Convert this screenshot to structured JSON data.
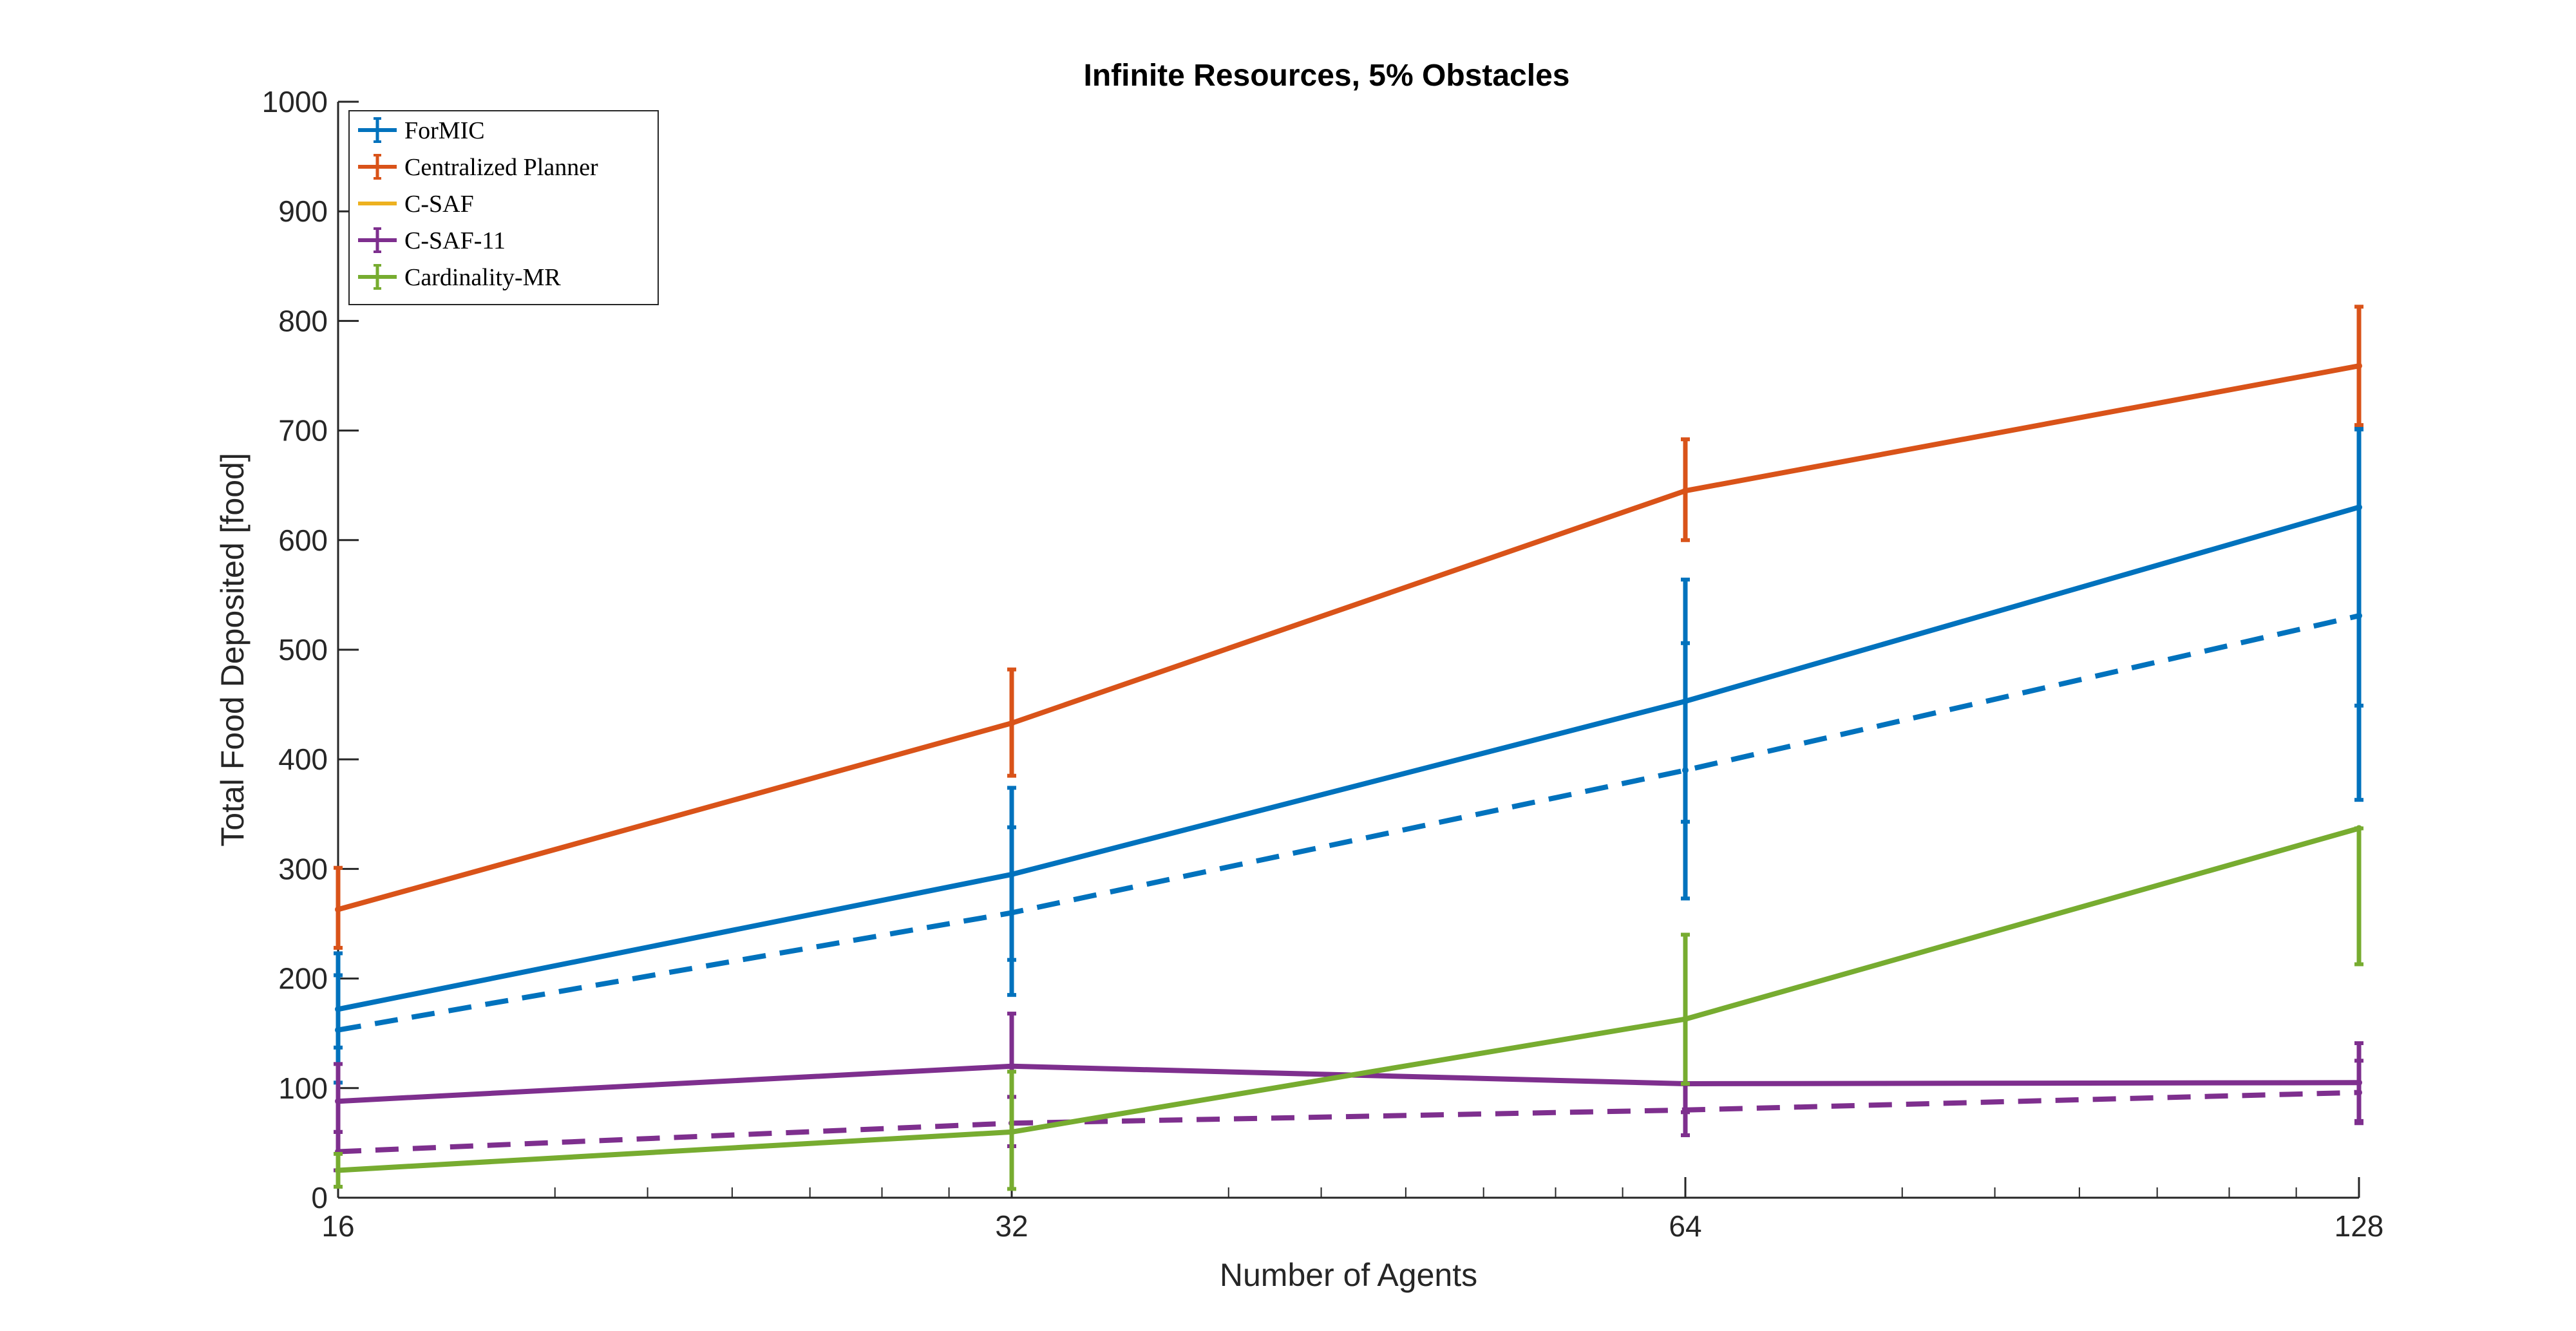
{
  "chart_data": {
    "type": "line",
    "title": "Infinite Resources, 5% Obstacles",
    "xlabel": "Number of Agents",
    "ylabel": "Total Food Deposited [food]",
    "x_scale": "log2",
    "x": [
      16,
      32,
      64,
      128
    ],
    "x_tick_labels": [
      "16",
      "32",
      "64",
      "128"
    ],
    "xlim": [
      16,
      128
    ],
    "ylim": [
      0,
      1000
    ],
    "y_ticks": [
      0,
      100,
      200,
      300,
      400,
      500,
      600,
      700,
      800,
      900,
      1000
    ],
    "legend_position": "top-left",
    "grid": false,
    "legend": [
      {
        "name": "ForMIC",
        "color": "#0072BD",
        "errorbar": true
      },
      {
        "name": "Centralized Planner",
        "color": "#D95319",
        "errorbar": true
      },
      {
        "name": "C-SAF",
        "color": "#EDB120",
        "errorbar": false
      },
      {
        "name": "C-SAF-11",
        "color": "#7E2F8E",
        "errorbar": true
      },
      {
        "name": "Cardinality-MR",
        "color": "#77AC30",
        "errorbar": true
      }
    ],
    "series": [
      {
        "name": "ForMIC",
        "color": "#0072BD",
        "style": "solid",
        "values": [
          172,
          295,
          453,
          630
        ],
        "err_low": [
          137,
          217,
          343,
          449
        ],
        "err_high": [
          203,
          338,
          506,
          702
        ]
      },
      {
        "name": "ForMIC",
        "color": "#0072BD",
        "style": "dashed",
        "values": [
          153,
          260,
          390,
          531
        ],
        "err_low": [
          105,
          185,
          273,
          363
        ],
        "err_high": [
          223,
          374,
          564,
          701
        ]
      },
      {
        "name": "Centralized Planner",
        "color": "#D95319",
        "style": "solid",
        "values": [
          263,
          433,
          645,
          759
        ],
        "err_low": [
          228,
          385,
          600,
          705
        ],
        "err_high": [
          301,
          482,
          692,
          813
        ]
      },
      {
        "name": "C-SAF-11",
        "color": "#7E2F8E",
        "style": "solid",
        "values": [
          88,
          120,
          104,
          105
        ],
        "err_low": [
          60,
          92,
          78,
          70
        ],
        "err_high": [
          122,
          168,
          104,
          141
        ]
      },
      {
        "name": "C-SAF-11",
        "color": "#7E2F8E",
        "style": "dashed",
        "values": [
          42,
          68,
          80,
          96
        ],
        "err_low": [
          25,
          47,
          57,
          68
        ],
        "err_high": [
          60,
          92,
          104,
          125
        ]
      },
      {
        "name": "Cardinality-MR",
        "color": "#77AC30",
        "style": "solid",
        "values": [
          25,
          60,
          163,
          337
        ],
        "err_low": [
          10,
          8,
          104,
          213
        ],
        "err_high": [
          40,
          115,
          240,
          337
        ]
      }
    ]
  }
}
